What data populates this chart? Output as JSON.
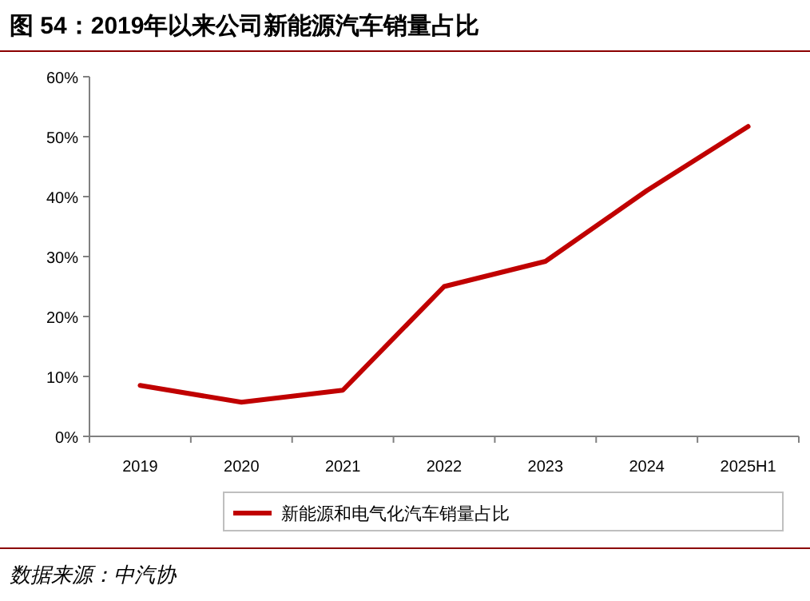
{
  "chart_data": {
    "type": "line",
    "title": "图 54：2019年以来公司新能源汽车销量占比",
    "categories": [
      "2019",
      "2020",
      "2021",
      "2022",
      "2023",
      "2024",
      "2025H1"
    ],
    "series": [
      {
        "name": "新能源和电气化汽车销量占比",
        "color": "#c00000",
        "values": [
          8.5,
          5.7,
          7.7,
          25,
          29.2,
          41,
          51.7
        ]
      }
    ],
    "ylim": [
      0,
      60
    ],
    "yticks": [
      {
        "value": 0,
        "label": "0%"
      },
      {
        "value": 10,
        "label": "10%"
      },
      {
        "value": 20,
        "label": "20%"
      },
      {
        "value": 30,
        "label": "30%"
      },
      {
        "value": 40,
        "label": "40%"
      },
      {
        "value": 50,
        "label": "50%"
      },
      {
        "value": 60,
        "label": "60%"
      }
    ],
    "legend": "bottom",
    "grid": false,
    "marker": "none",
    "line_style": "solid",
    "annotations": [
      "数据来源：中汽协"
    ]
  }
}
